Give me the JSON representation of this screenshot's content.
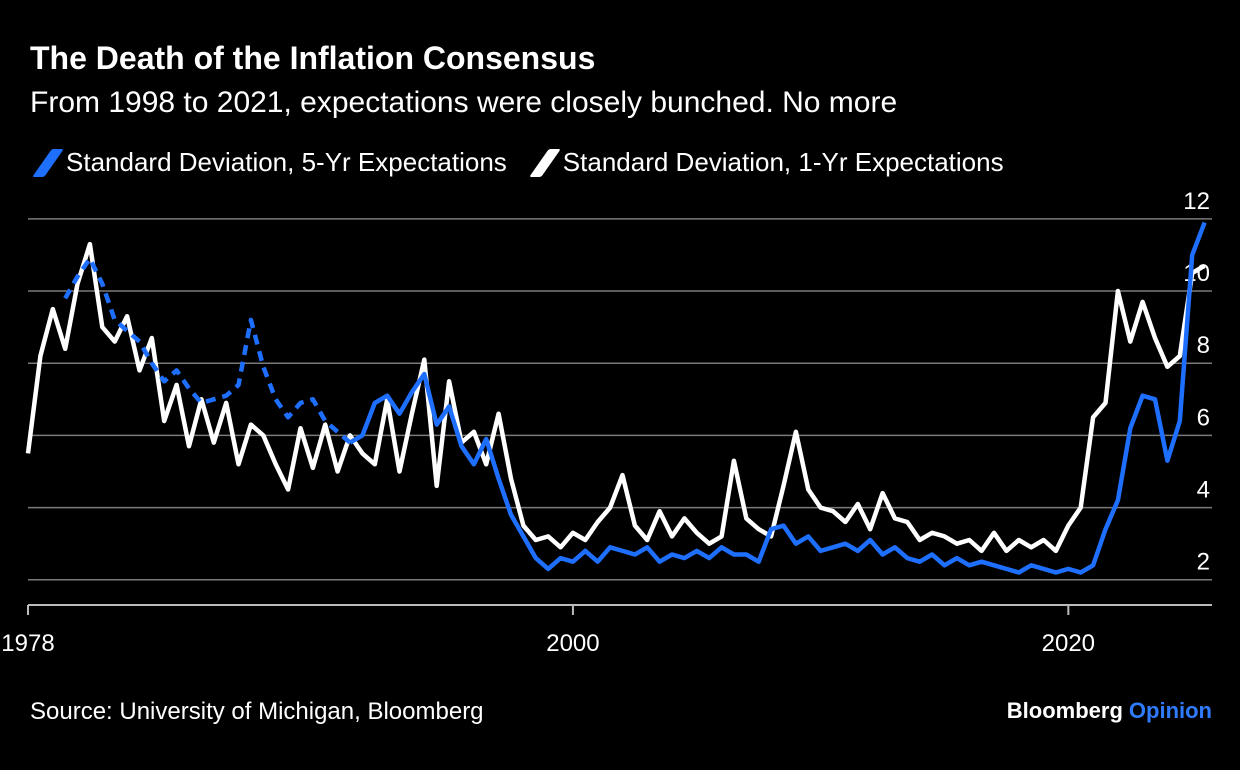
{
  "title": "The Death of the Inflation Consensus",
  "subtitle": "From 1998 to 2021, expectations were closely bunched. No more",
  "source": "Source: University of Michigan, Bloomberg",
  "brand": {
    "name": "Bloomberg",
    "accent": "Opinion"
  },
  "colors": {
    "background": "#000000",
    "series_5yr": "#1f6fff",
    "series_1yr": "#ffffff",
    "grid": "#7a7a7a",
    "brand_accent": "#2f7bff"
  },
  "chart_data": {
    "type": "line",
    "title": "The Death of the Inflation Consensus",
    "subtitle": "From 1998 to 2021, expectations were closely bunched. No more",
    "xlabel": "",
    "ylabel": "",
    "xlim": [
      1978,
      2025.8
    ],
    "ylim": [
      1.3,
      12.8
    ],
    "x_ticks": [
      1978,
      2000,
      2020
    ],
    "x_tick_labels": [
      "1978",
      "2000",
      "2020"
    ],
    "y_ticks": [
      2,
      4,
      6,
      8,
      10,
      12
    ],
    "y_tick_labels": [
      "2",
      "4",
      "6",
      "8",
      "10",
      "12"
    ],
    "y_axis_side": "right",
    "grid": "horizontal",
    "legend_position": "top-left",
    "series": [
      {
        "name": "Standard Deviation, 5-Yr Expectations",
        "color": "#1f6fff",
        "style": "solid, dashed where survey data is sparse (1979-1990)",
        "x": [
          1979.5,
          1980.0,
          1980.5,
          1981.0,
          1981.5,
          1982.0,
          1982.5,
          1983.0,
          1983.5,
          1984.0,
          1984.5,
          1985.0,
          1985.5,
          1986.0,
          1986.5,
          1987.0,
          1987.5,
          1988.0,
          1988.5,
          1989.0,
          1989.5,
          1990.0,
          1990.5,
          1991.0,
          1991.5,
          1992.0,
          1992.5,
          1993.0,
          1993.5,
          1994.0,
          1994.5,
          1995.0,
          1995.5,
          1996.0,
          1996.5,
          1997.0,
          1997.5,
          1998.0,
          1998.5,
          1999.0,
          1999.5,
          2000.0,
          2000.5,
          2001.0,
          2001.5,
          2002.0,
          2002.5,
          2003.0,
          2003.5,
          2004.0,
          2004.5,
          2005.0,
          2005.5,
          2006.0,
          2006.5,
          2007.0,
          2007.5,
          2008.0,
          2008.5,
          2009.0,
          2009.5,
          2010.0,
          2010.5,
          2011.0,
          2011.5,
          2012.0,
          2012.5,
          2013.0,
          2013.5,
          2014.0,
          2014.5,
          2015.0,
          2015.5,
          2016.0,
          2016.5,
          2017.0,
          2017.5,
          2018.0,
          2018.5,
          2019.0,
          2019.5,
          2020.0,
          2020.5,
          2021.0,
          2021.5,
          2022.0,
          2022.5,
          2023.0,
          2023.5,
          2024.0,
          2024.5,
          2025.0,
          2025.5
        ],
        "values": [
          9.8,
          10.4,
          10.9,
          10.2,
          9.2,
          8.9,
          8.6,
          8.0,
          7.5,
          7.8,
          7.3,
          6.9,
          7.0,
          7.1,
          7.4,
          9.2,
          7.9,
          7.0,
          6.5,
          6.9,
          7.0,
          6.4,
          6.1,
          5.8,
          6.0,
          6.9,
          7.1,
          6.6,
          7.2,
          7.7,
          6.3,
          6.8,
          5.7,
          5.2,
          5.9,
          4.8,
          3.8,
          3.2,
          2.6,
          2.3,
          2.6,
          2.5,
          2.8,
          2.5,
          2.9,
          2.8,
          2.7,
          2.9,
          2.5,
          2.7,
          2.6,
          2.8,
          2.6,
          2.9,
          2.7,
          2.7,
          2.5,
          3.4,
          3.5,
          3.0,
          3.2,
          2.8,
          2.9,
          3.0,
          2.8,
          3.1,
          2.7,
          2.9,
          2.6,
          2.5,
          2.7,
          2.4,
          2.6,
          2.4,
          2.5,
          2.4,
          2.3,
          2.2,
          2.4,
          2.3,
          2.2,
          2.3,
          2.2,
          2.4,
          3.4,
          4.2,
          6.2,
          7.1,
          7.0,
          5.3,
          6.4,
          11.0,
          11.9
        ]
      },
      {
        "name": "Standard Deviation, 1-Yr Expectations",
        "color": "#ffffff",
        "style": "solid",
        "x": [
          1978.0,
          1978.5,
          1979.0,
          1979.5,
          1980.0,
          1980.5,
          1981.0,
          1981.5,
          1982.0,
          1982.5,
          1983.0,
          1983.5,
          1984.0,
          1984.5,
          1985.0,
          1985.5,
          1986.0,
          1986.5,
          1987.0,
          1987.5,
          1988.0,
          1988.5,
          1989.0,
          1989.5,
          1990.0,
          1990.5,
          1991.0,
          1991.5,
          1992.0,
          1992.5,
          1993.0,
          1993.5,
          1994.0,
          1994.5,
          1995.0,
          1995.5,
          1996.0,
          1996.5,
          1997.0,
          1997.5,
          1998.0,
          1998.5,
          1999.0,
          1999.5,
          2000.0,
          2000.5,
          2001.0,
          2001.5,
          2002.0,
          2002.5,
          2003.0,
          2003.5,
          2004.0,
          2004.5,
          2005.0,
          2005.5,
          2006.0,
          2006.5,
          2007.0,
          2007.5,
          2008.0,
          2008.5,
          2009.0,
          2009.5,
          2010.0,
          2010.5,
          2011.0,
          2011.5,
          2012.0,
          2012.5,
          2013.0,
          2013.5,
          2014.0,
          2014.5,
          2015.0,
          2015.5,
          2016.0,
          2016.5,
          2017.0,
          2017.5,
          2018.0,
          2018.5,
          2019.0,
          2019.5,
          2020.0,
          2020.5,
          2021.0,
          2021.5,
          2022.0,
          2022.5,
          2023.0,
          2023.5,
          2024.0,
          2024.5,
          2025.0,
          2025.5
        ],
        "values": [
          5.5,
          8.2,
          9.5,
          8.4,
          10.2,
          11.3,
          9.0,
          8.6,
          9.3,
          7.8,
          8.7,
          6.4,
          7.4,
          5.7,
          7.0,
          5.8,
          6.9,
          5.2,
          6.3,
          6.0,
          5.2,
          4.5,
          6.2,
          5.1,
          6.3,
          5.0,
          6.0,
          5.5,
          5.2,
          7.0,
          5.0,
          6.6,
          8.1,
          4.6,
          7.5,
          5.8,
          6.1,
          5.2,
          6.6,
          4.8,
          3.5,
          3.1,
          3.2,
          2.9,
          3.3,
          3.1,
          3.6,
          4.0,
          4.9,
          3.5,
          3.1,
          3.9,
          3.2,
          3.7,
          3.3,
          3.0,
          3.2,
          5.3,
          3.7,
          3.4,
          3.2,
          4.6,
          6.1,
          4.5,
          4.0,
          3.9,
          3.6,
          4.1,
          3.4,
          4.4,
          3.7,
          3.6,
          3.1,
          3.3,
          3.2,
          3.0,
          3.1,
          2.8,
          3.3,
          2.8,
          3.1,
          2.9,
          3.1,
          2.8,
          3.5,
          4.0,
          6.5,
          6.9,
          10.0,
          8.6,
          9.7,
          8.7,
          7.9,
          8.2,
          10.5,
          10.7
        ]
      }
    ]
  }
}
